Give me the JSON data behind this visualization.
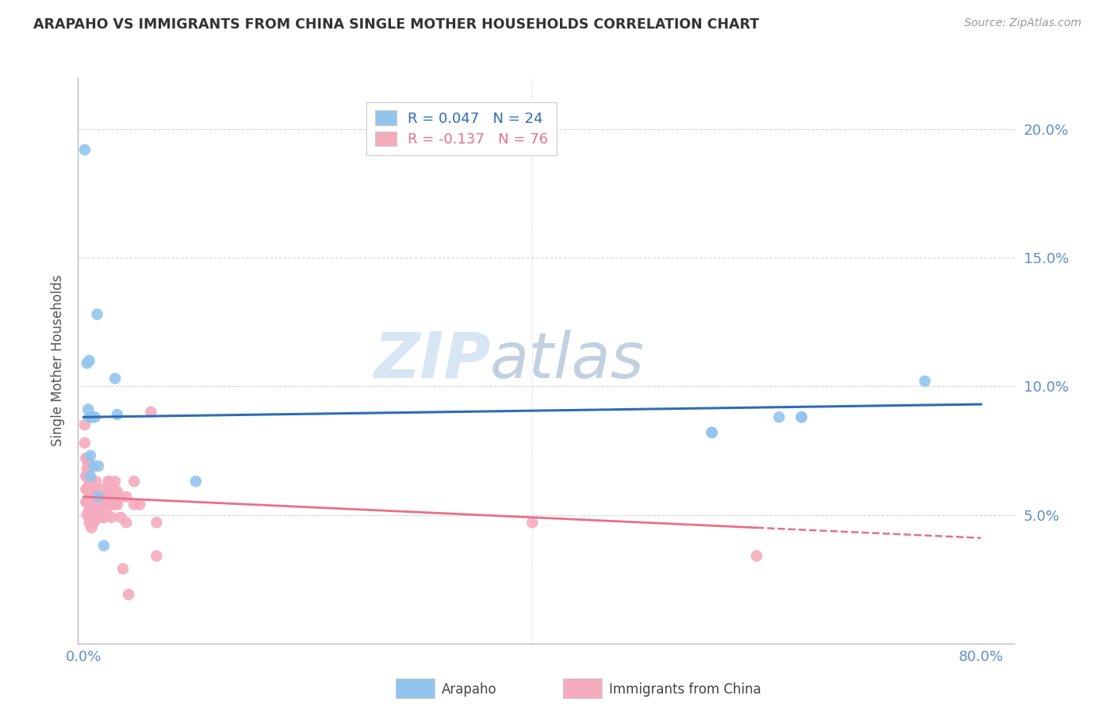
{
  "title": "ARAPAHO VS IMMIGRANTS FROM CHINA SINGLE MOTHER HOUSEHOLDS CORRELATION CHART",
  "source": "Source: ZipAtlas.com",
  "ylabel": "Single Mother Households",
  "ylim": [
    0,
    0.22
  ],
  "xlim": [
    -0.005,
    0.83
  ],
  "yticks": [
    0.0,
    0.05,
    0.1,
    0.15,
    0.2
  ],
  "blue_R": 0.047,
  "blue_N": 24,
  "pink_R": -0.137,
  "pink_N": 76,
  "blue_color": "#92C5EE",
  "pink_color": "#F4ABBE",
  "blue_line_color": "#2E6DB4",
  "pink_line_color": "#E8708A",
  "blue_scatter": [
    [
      0.001,
      0.192
    ],
    [
      0.003,
      0.109
    ],
    [
      0.004,
      0.091
    ],
    [
      0.005,
      0.088
    ],
    [
      0.005,
      0.11
    ],
    [
      0.006,
      0.073
    ],
    [
      0.006,
      0.065
    ],
    [
      0.007,
      0.088
    ],
    [
      0.008,
      0.088
    ],
    [
      0.009,
      0.069
    ],
    [
      0.01,
      0.088
    ],
    [
      0.012,
      0.128
    ],
    [
      0.013,
      0.069
    ],
    [
      0.013,
      0.057
    ],
    [
      0.018,
      0.038
    ],
    [
      0.028,
      0.103
    ],
    [
      0.03,
      0.089
    ],
    [
      0.1,
      0.063
    ],
    [
      0.56,
      0.082
    ],
    [
      0.62,
      0.088
    ],
    [
      0.64,
      0.088
    ],
    [
      0.75,
      0.102
    ],
    [
      0.56,
      0.082
    ],
    [
      0.64,
      0.088
    ]
  ],
  "pink_scatter": [
    [
      0.001,
      0.085
    ],
    [
      0.001,
      0.078
    ],
    [
      0.002,
      0.072
    ],
    [
      0.002,
      0.065
    ],
    [
      0.002,
      0.06
    ],
    [
      0.002,
      0.055
    ],
    [
      0.003,
      0.072
    ],
    [
      0.003,
      0.068
    ],
    [
      0.003,
      0.065
    ],
    [
      0.003,
      0.06
    ],
    [
      0.003,
      0.055
    ],
    [
      0.003,
      0.05
    ],
    [
      0.004,
      0.07
    ],
    [
      0.004,
      0.065
    ],
    [
      0.004,
      0.06
    ],
    [
      0.004,
      0.055
    ],
    [
      0.005,
      0.068
    ],
    [
      0.005,
      0.062
    ],
    [
      0.005,
      0.057
    ],
    [
      0.005,
      0.052
    ],
    [
      0.005,
      0.047
    ],
    [
      0.006,
      0.063
    ],
    [
      0.006,
      0.058
    ],
    [
      0.006,
      0.053
    ],
    [
      0.007,
      0.06
    ],
    [
      0.007,
      0.055
    ],
    [
      0.007,
      0.05
    ],
    [
      0.007,
      0.045
    ],
    [
      0.008,
      0.06
    ],
    [
      0.008,
      0.055
    ],
    [
      0.008,
      0.049
    ],
    [
      0.009,
      0.055
    ],
    [
      0.009,
      0.047
    ],
    [
      0.01,
      0.057
    ],
    [
      0.01,
      0.053
    ],
    [
      0.01,
      0.048
    ],
    [
      0.011,
      0.063
    ],
    [
      0.011,
      0.058
    ],
    [
      0.012,
      0.057
    ],
    [
      0.012,
      0.052
    ],
    [
      0.013,
      0.054
    ],
    [
      0.014,
      0.057
    ],
    [
      0.014,
      0.051
    ],
    [
      0.015,
      0.054
    ],
    [
      0.015,
      0.049
    ],
    [
      0.016,
      0.06
    ],
    [
      0.016,
      0.051
    ],
    [
      0.018,
      0.054
    ],
    [
      0.018,
      0.049
    ],
    [
      0.02,
      0.057
    ],
    [
      0.02,
      0.051
    ],
    [
      0.022,
      0.063
    ],
    [
      0.022,
      0.058
    ],
    [
      0.023,
      0.063
    ],
    [
      0.023,
      0.057
    ],
    [
      0.025,
      0.06
    ],
    [
      0.025,
      0.054
    ],
    [
      0.025,
      0.049
    ],
    [
      0.028,
      0.063
    ],
    [
      0.028,
      0.054
    ],
    [
      0.03,
      0.059
    ],
    [
      0.03,
      0.054
    ],
    [
      0.032,
      0.057
    ],
    [
      0.033,
      0.049
    ],
    [
      0.035,
      0.029
    ],
    [
      0.038,
      0.057
    ],
    [
      0.038,
      0.047
    ],
    [
      0.04,
      0.019
    ],
    [
      0.045,
      0.063
    ],
    [
      0.045,
      0.054
    ],
    [
      0.05,
      0.054
    ],
    [
      0.06,
      0.09
    ],
    [
      0.065,
      0.047
    ],
    [
      0.065,
      0.034
    ],
    [
      0.4,
      0.047
    ],
    [
      0.6,
      0.034
    ]
  ],
  "blue_line": [
    [
      0.0,
      0.088
    ],
    [
      0.8,
      0.093
    ]
  ],
  "pink_line_solid": [
    [
      0.0,
      0.057
    ],
    [
      0.6,
      0.045
    ]
  ],
  "pink_line_dash": [
    [
      0.6,
      0.045
    ],
    [
      0.8,
      0.041
    ]
  ],
  "watermark_zip": "ZIP",
  "watermark_atlas": "atlas",
  "background_color": "#FFFFFF",
  "grid_color": "#CCCCCC",
  "tick_color": "#5B8EC8",
  "axis_color": "#BBBBBB"
}
